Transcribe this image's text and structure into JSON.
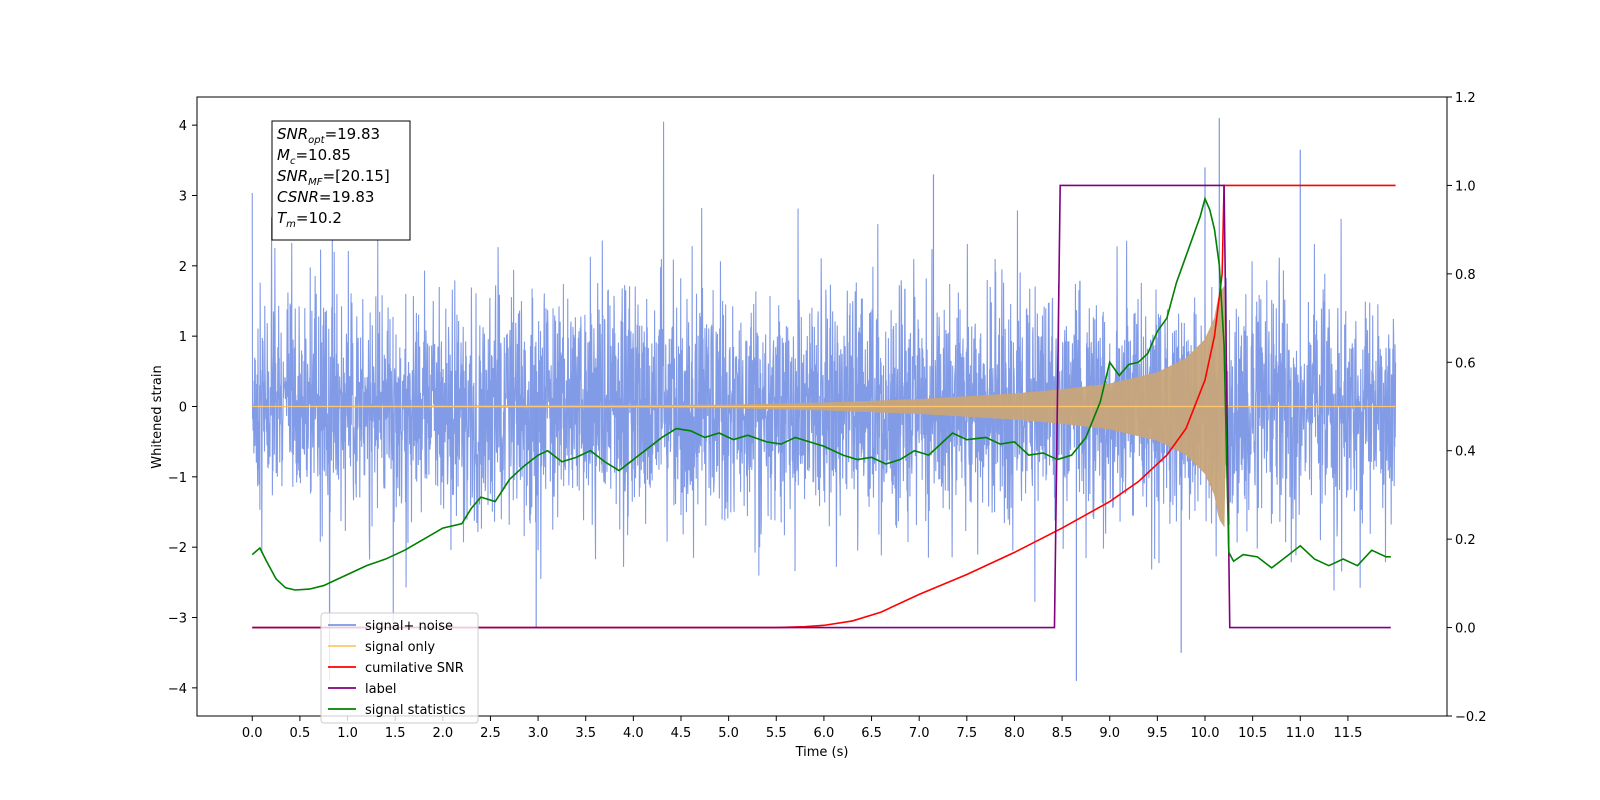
{
  "chart_data": {
    "type": "line",
    "xlabel": "Time (s)",
    "ylabel": "Whitened strain",
    "xlim": [
      -0.58,
      12.54
    ],
    "ylim": [
      -4.4,
      4.4
    ],
    "y2lim": [
      -0.2,
      1.2
    ],
    "grid": false,
    "legend_position": "lower-left",
    "x_ticks": [
      "0.0",
      "0.5",
      "1.0",
      "1.5",
      "2.0",
      "2.5",
      "3.0",
      "3.5",
      "4.0",
      "4.5",
      "5.0",
      "5.5",
      "6.0",
      "6.5",
      "7.0",
      "7.5",
      "8.0",
      "8.5",
      "9.0",
      "9.5",
      "10.0",
      "10.5",
      "11.0",
      "11.5"
    ],
    "y_ticks": [
      "4",
      "3",
      "2",
      "1",
      "0",
      "−1",
      "−2",
      "−3",
      "−4"
    ],
    "y2_ticks": [
      "1.2",
      "1.0",
      "0.8",
      "0.6",
      "0.4",
      "0.2",
      "0.0",
      "−0.2"
    ],
    "annotation": {
      "lines": [
        {
          "base": "SNR",
          "sub": "opt",
          "value": "=19.83"
        },
        {
          "base": "M",
          "sub": "c",
          "value": "=10.85"
        },
        {
          "base": "SNR",
          "sub": "MF",
          "value": "=[20.15]"
        },
        {
          "base": "CSNR",
          "sub": "",
          "value": "=19.83"
        },
        {
          "base": "T",
          "sub": "m",
          "value": "=10.2"
        }
      ]
    },
    "legend": [
      {
        "name": "signal+ noise",
        "color": "#7b96e6"
      },
      {
        "name": "signal only",
        "color": "#ffc66b"
      },
      {
        "name": "cumilative SNR",
        "color": "#ff0000"
      },
      {
        "name": "label",
        "color": "#800080"
      },
      {
        "name": "signal statistics",
        "color": "#008000"
      }
    ],
    "series": [
      {
        "name": "signal+ noise",
        "axis": "left",
        "color": "#7b96e6",
        "x_range": [
          0.0,
          12.0
        ],
        "amplitude_range": [
          -3.9,
          4.1
        ],
        "description_values": "whitened noise with typical envelope about ±2.5, isolated peaks up to 4.1 near t=10.15"
      },
      {
        "name": "signal only",
        "axis": "left",
        "color": "#c8a57a",
        "x_range": [
          0.0,
          12.0
        ],
        "envelope": [
          [
            0.0,
            0.0
          ],
          [
            5.0,
            0.02
          ],
          [
            6.0,
            0.05
          ],
          [
            7.0,
            0.1
          ],
          [
            8.0,
            0.18
          ],
          [
            8.5,
            0.24
          ],
          [
            9.0,
            0.32
          ],
          [
            9.5,
            0.48
          ],
          [
            9.8,
            0.68
          ],
          [
            10.0,
            0.95
          ],
          [
            10.1,
            1.25
          ],
          [
            10.15,
            1.6
          ],
          [
            10.2,
            1.7
          ],
          [
            10.22,
            0.0
          ],
          [
            12.0,
            0.0
          ]
        ]
      },
      {
        "name": "cumilative SNR",
        "axis": "right",
        "color": "#ff0000",
        "points": [
          [
            0.0,
            0.0
          ],
          [
            5.5,
            0.0
          ],
          [
            5.8,
            0.002
          ],
          [
            6.0,
            0.005
          ],
          [
            6.3,
            0.015
          ],
          [
            6.6,
            0.035
          ],
          [
            7.0,
            0.075
          ],
          [
            7.5,
            0.12
          ],
          [
            8.0,
            0.17
          ],
          [
            8.5,
            0.225
          ],
          [
            9.0,
            0.285
          ],
          [
            9.3,
            0.33
          ],
          [
            9.6,
            0.39
          ],
          [
            9.8,
            0.45
          ],
          [
            10.0,
            0.56
          ],
          [
            10.1,
            0.66
          ],
          [
            10.18,
            0.8
          ],
          [
            10.2,
            1.0
          ],
          [
            12.0,
            1.0
          ]
        ]
      },
      {
        "name": "label",
        "axis": "right",
        "color": "#800080",
        "points": [
          [
            0.0,
            0.0
          ],
          [
            8.42,
            0.0
          ],
          [
            8.48,
            1.0
          ],
          [
            10.2,
            1.0
          ],
          [
            10.26,
            0.0
          ],
          [
            11.95,
            0.0
          ]
        ]
      },
      {
        "name": "signal statistics",
        "axis": "right",
        "color": "#008000",
        "points": [
          [
            0.0,
            0.165
          ],
          [
            0.08,
            0.18
          ],
          [
            0.15,
            0.15
          ],
          [
            0.25,
            0.11
          ],
          [
            0.35,
            0.09
          ],
          [
            0.45,
            0.085
          ],
          [
            0.6,
            0.087
          ],
          [
            0.75,
            0.095
          ],
          [
            0.85,
            0.105
          ],
          [
            1.0,
            0.12
          ],
          [
            1.2,
            0.14
          ],
          [
            1.4,
            0.155
          ],
          [
            1.6,
            0.175
          ],
          [
            1.8,
            0.2
          ],
          [
            2.0,
            0.225
          ],
          [
            2.2,
            0.235
          ],
          [
            2.3,
            0.27
          ],
          [
            2.4,
            0.295
          ],
          [
            2.55,
            0.285
          ],
          [
            2.7,
            0.335
          ],
          [
            2.85,
            0.365
          ],
          [
            3.0,
            0.39
          ],
          [
            3.1,
            0.4
          ],
          [
            3.25,
            0.375
          ],
          [
            3.4,
            0.385
          ],
          [
            3.55,
            0.4
          ],
          [
            3.7,
            0.375
          ],
          [
            3.85,
            0.355
          ],
          [
            4.0,
            0.38
          ],
          [
            4.15,
            0.405
          ],
          [
            4.3,
            0.43
          ],
          [
            4.45,
            0.45
          ],
          [
            4.6,
            0.445
          ],
          [
            4.75,
            0.43
          ],
          [
            4.9,
            0.44
          ],
          [
            5.05,
            0.425
          ],
          [
            5.2,
            0.435
          ],
          [
            5.4,
            0.42
          ],
          [
            5.55,
            0.415
          ],
          [
            5.7,
            0.43
          ],
          [
            5.85,
            0.42
          ],
          [
            6.0,
            0.41
          ],
          [
            6.2,
            0.39
          ],
          [
            6.35,
            0.38
          ],
          [
            6.5,
            0.385
          ],
          [
            6.65,
            0.37
          ],
          [
            6.8,
            0.38
          ],
          [
            6.95,
            0.4
          ],
          [
            7.1,
            0.39
          ],
          [
            7.25,
            0.42
          ],
          [
            7.35,
            0.44
          ],
          [
            7.5,
            0.425
          ],
          [
            7.7,
            0.43
          ],
          [
            7.85,
            0.415
          ],
          [
            8.0,
            0.42
          ],
          [
            8.15,
            0.39
          ],
          [
            8.3,
            0.395
          ],
          [
            8.45,
            0.38
          ],
          [
            8.6,
            0.39
          ],
          [
            8.75,
            0.43
          ],
          [
            8.9,
            0.51
          ],
          [
            9.0,
            0.6
          ],
          [
            9.1,
            0.57
          ],
          [
            9.2,
            0.595
          ],
          [
            9.3,
            0.6
          ],
          [
            9.4,
            0.62
          ],
          [
            9.5,
            0.67
          ],
          [
            9.6,
            0.7
          ],
          [
            9.7,
            0.78
          ],
          [
            9.8,
            0.84
          ],
          [
            9.9,
            0.9
          ],
          [
            9.95,
            0.93
          ],
          [
            10.0,
            0.97
          ],
          [
            10.05,
            0.945
          ],
          [
            10.1,
            0.9
          ],
          [
            10.15,
            0.82
          ],
          [
            10.2,
            0.64
          ],
          [
            10.25,
            0.17
          ],
          [
            10.3,
            0.15
          ],
          [
            10.4,
            0.165
          ],
          [
            10.55,
            0.16
          ],
          [
            10.7,
            0.135
          ],
          [
            10.85,
            0.16
          ],
          [
            11.0,
            0.185
          ],
          [
            11.15,
            0.155
          ],
          [
            11.3,
            0.14
          ],
          [
            11.45,
            0.155
          ],
          [
            11.6,
            0.14
          ],
          [
            11.75,
            0.175
          ],
          [
            11.9,
            0.16
          ],
          [
            11.95,
            0.16
          ]
        ]
      }
    ]
  }
}
